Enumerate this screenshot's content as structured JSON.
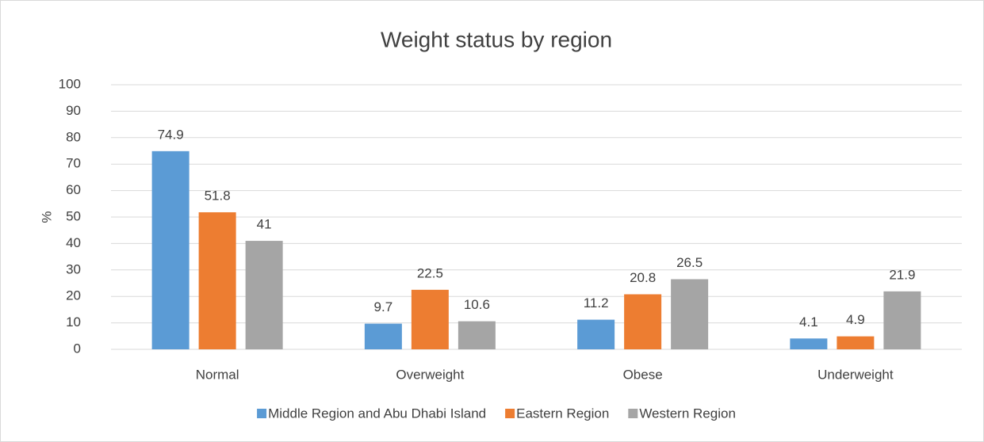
{
  "chart_data": {
    "type": "bar",
    "title": "Weight status by region",
    "y_label": "%",
    "categories": [
      "Normal",
      "Overweight",
      "Obese",
      "Underweight"
    ],
    "series": [
      {
        "name": "Middle Region and Abu Dhabi Island",
        "color": "#5b9bd5",
        "values": [
          74.9,
          9.7,
          11.2,
          4.1
        ]
      },
      {
        "name": "Eastern Region",
        "color": "#ed7d31",
        "values": [
          51.8,
          22.5,
          20.8,
          4.9
        ]
      },
      {
        "name": "Western Region",
        "color": "#a5a5a5",
        "values": [
          41,
          10.6,
          26.5,
          21.9
        ]
      }
    ],
    "ylim": [
      0,
      100
    ],
    "yticks": [
      0,
      10,
      20,
      30,
      40,
      50,
      60,
      70,
      80,
      90,
      100
    ],
    "grid": true,
    "legend": "bottom"
  }
}
